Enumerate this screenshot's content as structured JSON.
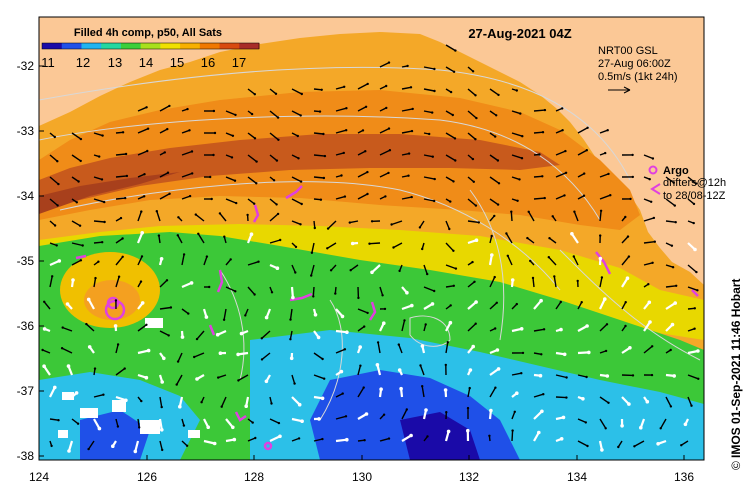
{
  "colorbar": {
    "title": "Filled 4h comp, p50, All Sats",
    "ticks": [
      "11",
      "12",
      "13",
      "14",
      "15",
      "16",
      "17"
    ],
    "colors": [
      "#1a0aa8",
      "#1f50e8",
      "#1fb4f0",
      "#25d8a0",
      "#3ccf3a",
      "#a8e01c",
      "#f0e000",
      "#f8b000",
      "#f07800",
      "#d84a10",
      "#a82c28"
    ]
  },
  "date_title": "27-Aug-2021 04Z",
  "current_legend": {
    "line1": "NRT00 GSL",
    "line2": "27-Aug 06:00Z",
    "line3": "0.5m/s (1kt 24h)"
  },
  "argo_legend": {
    "title": "Argo",
    "line1": "drifters@12h",
    "line2": "to 28/08-12Z",
    "color": "#e040e0"
  },
  "credit": "IMOS 01-Sep-2021 11:46 Hobart",
  "copyright_symbol": "©",
  "axes": {
    "x_ticks": [
      "124",
      "126",
      "128",
      "130",
      "132",
      "134",
      "136"
    ],
    "y_ticks": [
      "-32",
      "-33",
      "-34",
      "-35",
      "-36",
      "-37",
      "-38"
    ]
  },
  "colors": {
    "land": "#fbc896",
    "warm_sst": "#f4a020",
    "cool_sst": "#3ccf3a",
    "cold_sst": "#1fb4f0"
  }
}
